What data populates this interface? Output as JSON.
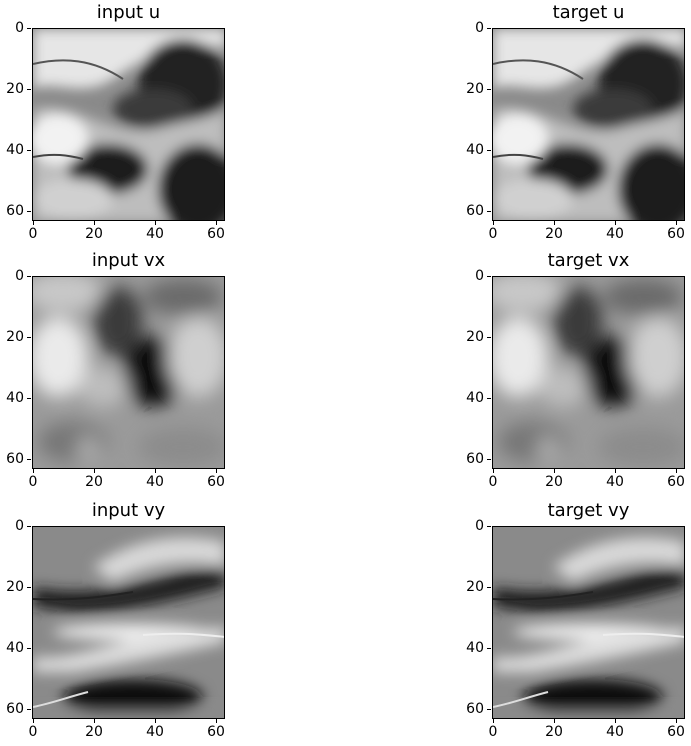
{
  "panels": [
    {
      "id": "input-u",
      "title": "input u",
      "field": "u"
    },
    {
      "id": "target-u",
      "title": "target u",
      "field": "u"
    },
    {
      "id": "input-vx",
      "title": "input vx",
      "field": "vx"
    },
    {
      "id": "target-vx",
      "title": "target vx",
      "field": "vx"
    },
    {
      "id": "input-vy",
      "title": "input vy",
      "field": "vy"
    },
    {
      "id": "target-vy",
      "title": "target vy",
      "field": "vy"
    }
  ],
  "axis": {
    "y_ticks": [
      "0",
      "20",
      "40",
      "60"
    ],
    "x_ticks": [
      "0",
      "20",
      "40",
      "60"
    ],
    "range": [
      0,
      63
    ]
  },
  "colormap": "gray"
}
